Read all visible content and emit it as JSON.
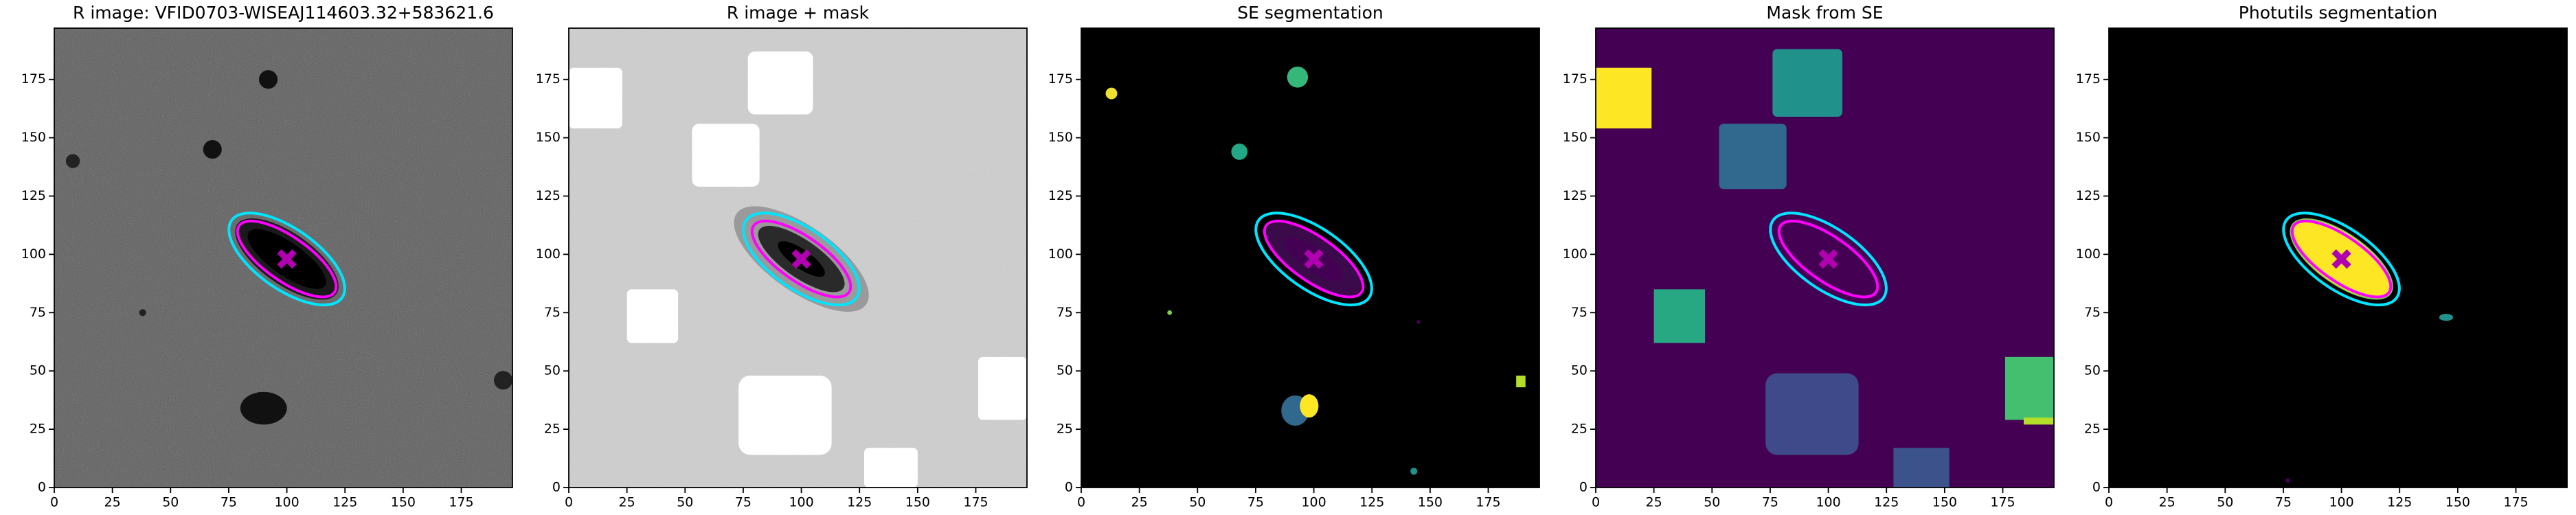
{
  "chart_data": [
    {
      "type": "image",
      "title": "R image: VFID0703-WISEAJ114603.32+583621.6",
      "xlim": [
        0,
        197
      ],
      "ylim": [
        0,
        197
      ],
      "xticks": [
        0,
        25,
        50,
        75,
        100,
        125,
        150,
        175
      ],
      "yticks": [
        0,
        25,
        50,
        75,
        100,
        125,
        150,
        175
      ],
      "ellipses": [
        {
          "x": 100,
          "y": 98,
          "a": 29,
          "b": 13,
          "angle": -35,
          "color": "#00e5ff"
        },
        {
          "x": 100,
          "y": 98,
          "a": 25,
          "b": 9.5,
          "angle": -35,
          "color": "#ff00ff"
        }
      ],
      "marker": {
        "x": 100,
        "y": 98,
        "color": "#b000b0"
      }
    },
    {
      "type": "image",
      "title": "R image + mask",
      "xlim": [
        0,
        197
      ],
      "ylim": [
        0,
        197
      ],
      "xticks": [
        0,
        25,
        50,
        75,
        100,
        125,
        150,
        175
      ],
      "yticks": [
        0,
        25,
        50,
        75,
        100,
        125,
        150,
        175
      ],
      "ellipses": [
        {
          "x": 100,
          "y": 98,
          "a": 29,
          "b": 13,
          "angle": -35,
          "color": "#00e5ff"
        },
        {
          "x": 100,
          "y": 98,
          "a": 25,
          "b": 9.5,
          "angle": -35,
          "color": "#ff00ff"
        }
      ],
      "marker": {
        "x": 100,
        "y": 98,
        "color": "#b000b0"
      }
    },
    {
      "type": "image",
      "title": "SE segmentation",
      "xlim": [
        0,
        197
      ],
      "ylim": [
        0,
        197
      ],
      "xticks": [
        0,
        25,
        50,
        75,
        100,
        125,
        150,
        175
      ],
      "yticks": [
        0,
        25,
        50,
        75,
        100,
        125,
        150,
        175
      ],
      "ellipses": [
        {
          "x": 100,
          "y": 98,
          "a": 29,
          "b": 13,
          "angle": -35,
          "color": "#00e5ff"
        },
        {
          "x": 100,
          "y": 98,
          "a": 25,
          "b": 9.5,
          "angle": -35,
          "color": "#ff00ff"
        }
      ],
      "marker": {
        "x": 100,
        "y": 98,
        "color": "#b000b0"
      }
    },
    {
      "type": "image",
      "title": "Mask from SE",
      "xlim": [
        0,
        197
      ],
      "ylim": [
        0,
        197
      ],
      "xticks": [
        0,
        25,
        50,
        75,
        100,
        125,
        150,
        175
      ],
      "yticks": [
        0,
        25,
        50,
        75,
        100,
        125,
        150,
        175
      ],
      "ellipses": [
        {
          "x": 100,
          "y": 98,
          "a": 29,
          "b": 13,
          "angle": -35,
          "color": "#00e5ff"
        },
        {
          "x": 100,
          "y": 98,
          "a": 25,
          "b": 9.5,
          "angle": -35,
          "color": "#ff00ff"
        }
      ],
      "marker": {
        "x": 100,
        "y": 98,
        "color": "#b000b0"
      }
    },
    {
      "type": "image",
      "title": "Photutils segmentation",
      "xlim": [
        0,
        197
      ],
      "ylim": [
        0,
        197
      ],
      "xticks": [
        0,
        25,
        50,
        75,
        100,
        125,
        150,
        175
      ],
      "yticks": [
        0,
        25,
        50,
        75,
        100,
        125,
        150,
        175
      ],
      "ellipses": [
        {
          "x": 100,
          "y": 98,
          "a": 29,
          "b": 13,
          "angle": -35,
          "color": "#00e5ff"
        },
        {
          "x": 100,
          "y": 98,
          "a": 25,
          "b": 9.5,
          "angle": -35,
          "color": "#ff00ff"
        }
      ],
      "marker": {
        "x": 100,
        "y": 98,
        "color": "#b000b0"
      }
    }
  ]
}
